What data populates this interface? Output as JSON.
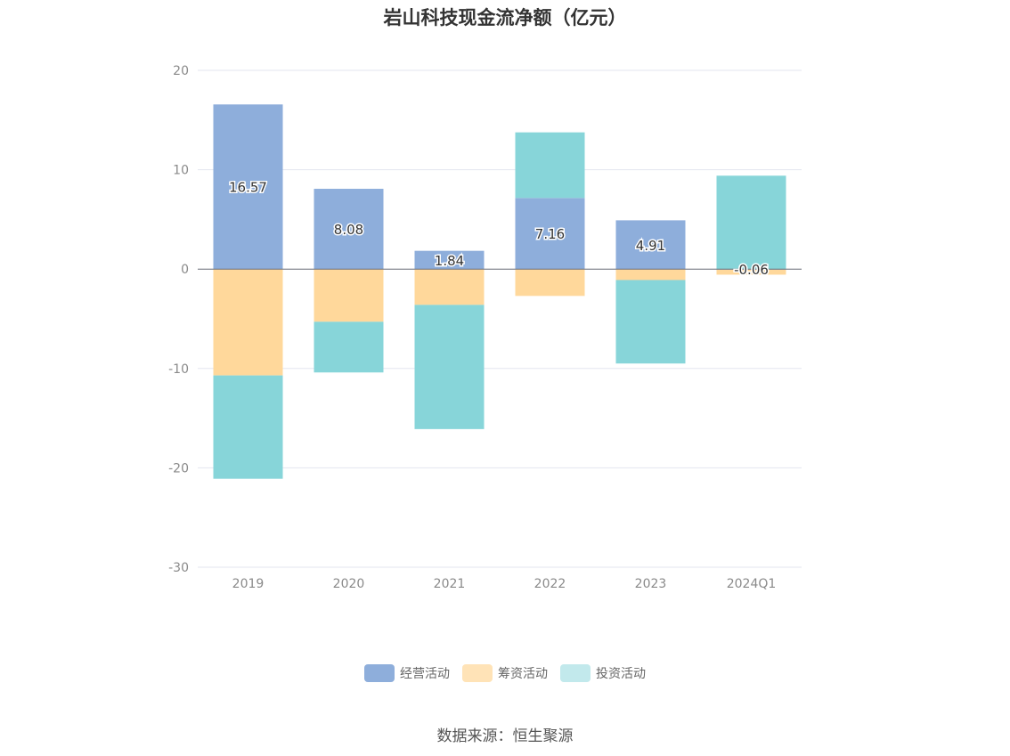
{
  "chart_data": {
    "type": "bar",
    "stacked": true,
    "title": "岩山科技现金流净额（亿元）",
    "categories": [
      "2019",
      "2020",
      "2021",
      "2022",
      "2023",
      "2024Q1"
    ],
    "ylim": [
      -30,
      20
    ],
    "yticks": [
      20,
      10,
      0,
      -10,
      -20,
      -30
    ],
    "grid": true,
    "legend_position": "bottom",
    "series": [
      {
        "name": "经营活动",
        "color": "#8eaedb",
        "values": [
          16.57,
          8.08,
          1.84,
          7.16,
          4.91,
          -0.06
        ],
        "labels": [
          "16.57",
          "8.08",
          "1.84",
          "7.16",
          "4.91",
          "-0.06"
        ]
      },
      {
        "name": "筹资活动",
        "color": "#ffd89b",
        "values": [
          -10.7,
          -5.3,
          -3.6,
          -2.7,
          -1.1,
          -0.5
        ]
      },
      {
        "name": "投资活动",
        "color": "#87d5d9",
        "values": [
          -10.4,
          -5.1,
          -12.5,
          6.6,
          -8.4,
          9.4
        ]
      }
    ],
    "source": "数据来源：恒生聚源"
  },
  "legend_colors": {
    "经营活动": "#8eaedb",
    "筹资活动": "#ffe3b7",
    "投资活动": "#c2e9ec"
  }
}
